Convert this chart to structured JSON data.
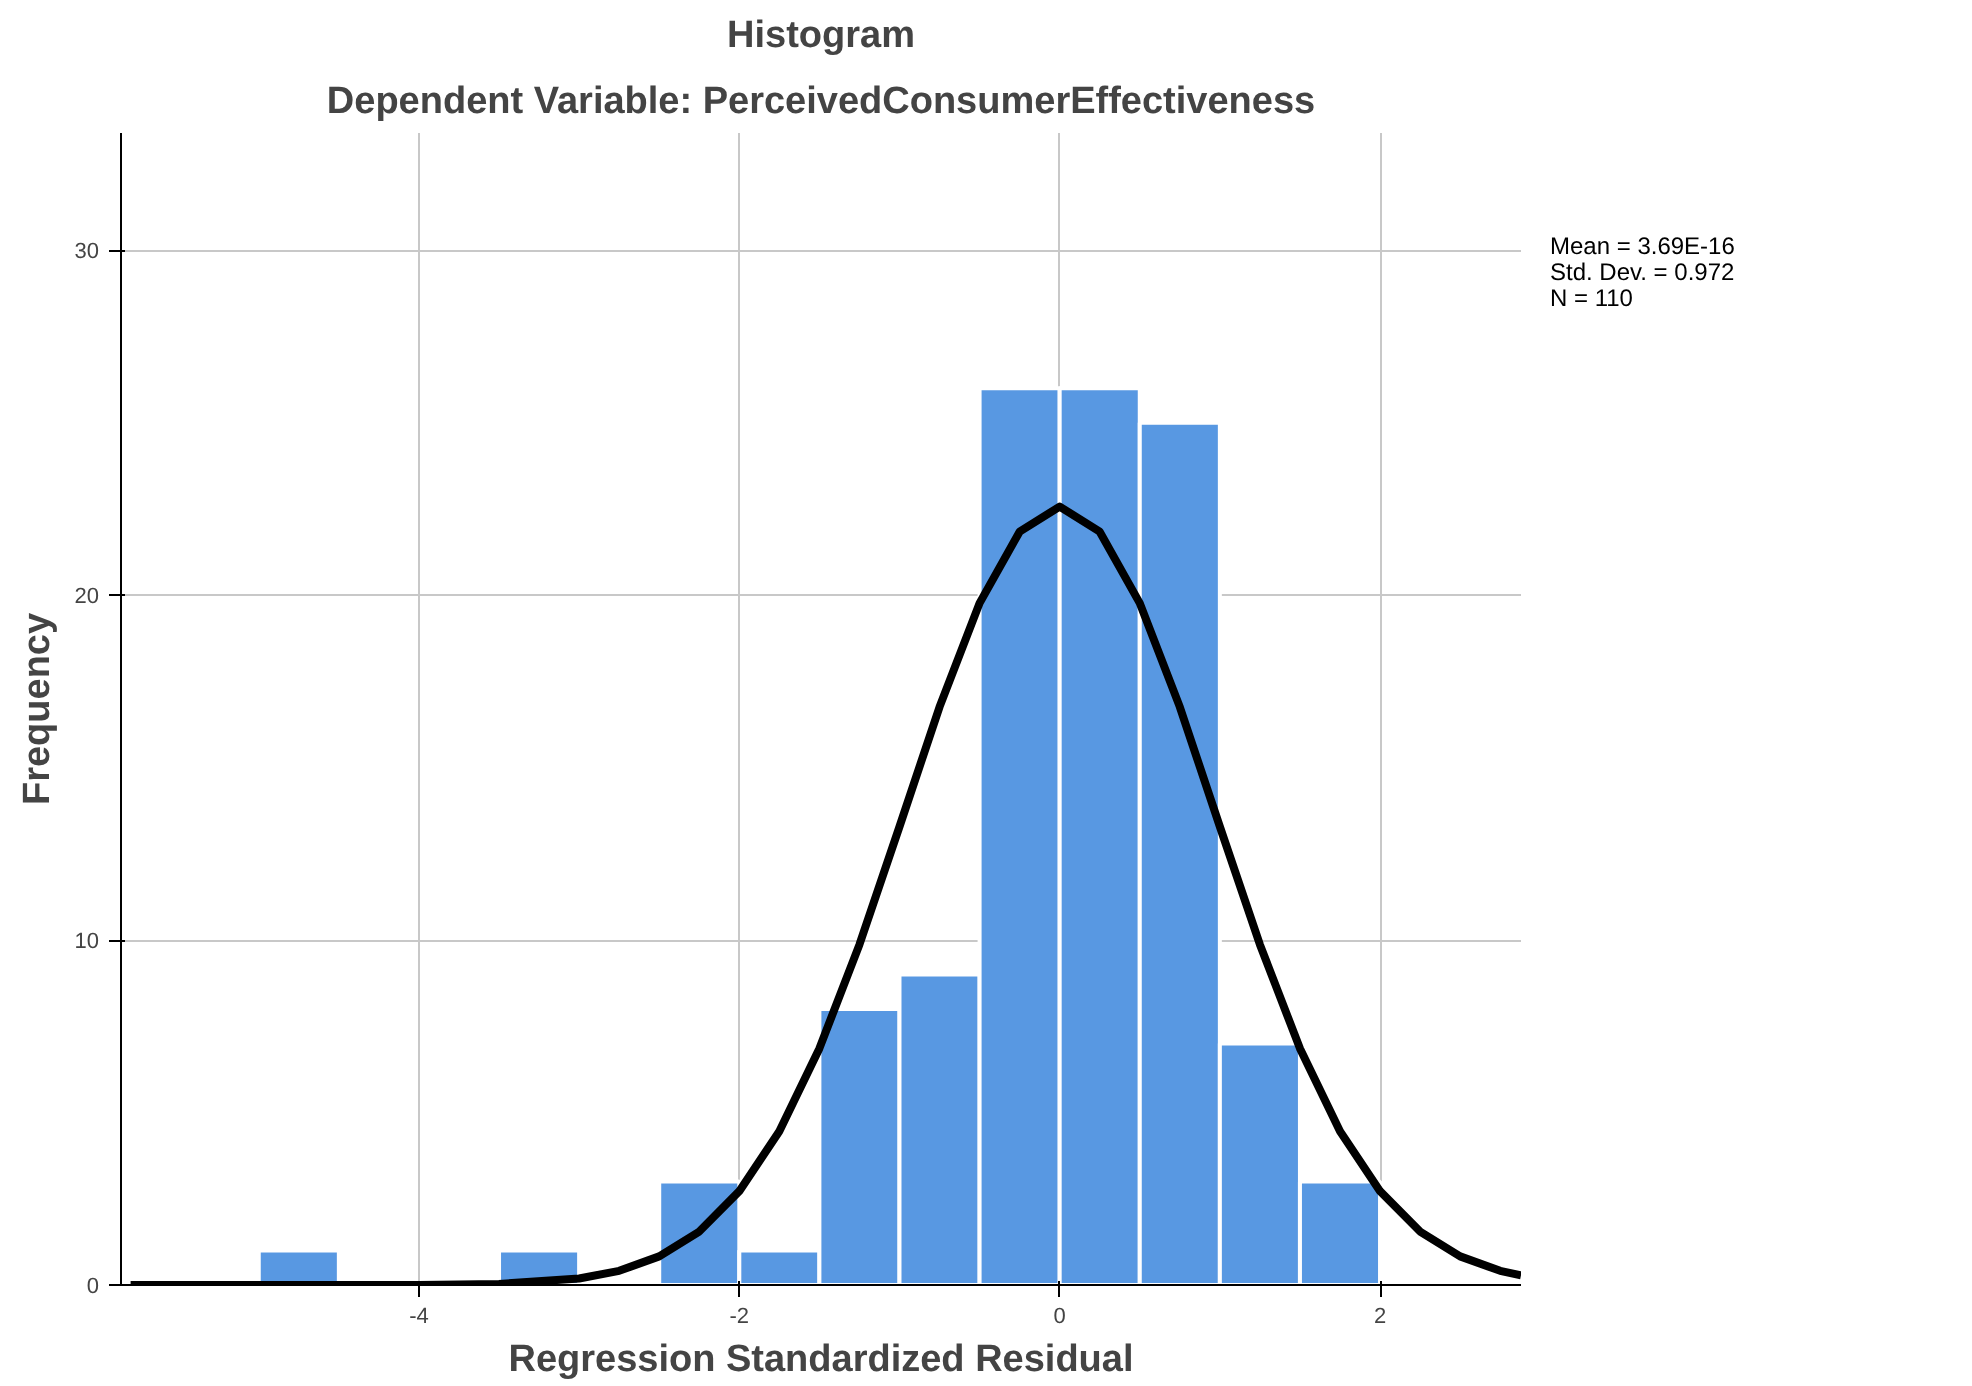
{
  "chart_data": {
    "type": "histogram",
    "title": "Histogram",
    "subtitle": "Dependent Variable: PerceivedConsumerEffectiveness",
    "xlabel": "Regression Standardized Residual",
    "ylabel": "Frequency",
    "bins": [
      -5,
      -4.5,
      -4,
      -3.5,
      -3,
      -2.5,
      -2,
      -1.5,
      -1,
      -0.5,
      0,
      0.5,
      1,
      1.5,
      2
    ],
    "values": [
      1,
      0,
      0,
      1,
      0,
      3,
      1,
      8,
      9,
      26,
      26,
      25,
      7,
      3
    ],
    "color": "#5898e2",
    "series": [
      {
        "type": "line",
        "color": "#000000",
        "x": [
          -5.8,
          -4,
          -3.5,
          -3,
          -2.75,
          -2.5,
          -2.25,
          -2,
          -1.75,
          -1.5,
          -1.25,
          -1,
          -0.75,
          -0.5,
          -0.25,
          0,
          0.25,
          0.5,
          0.75,
          1,
          1.25,
          1.5,
          1.75,
          2,
          2.25,
          2.5,
          2.75,
          2.88
        ],
        "values": [
          0,
          0,
          0.03,
          0.19,
          0.41,
          0.83,
          1.55,
          2.72,
          4.46,
          6.86,
          9.87,
          13.29,
          16.76,
          19.77,
          21.84,
          22.57,
          21.84,
          19.77,
          16.76,
          13.29,
          9.87,
          6.86,
          4.46,
          2.72,
          1.55,
          0.83,
          0.41,
          0.28
        ]
      }
    ],
    "xlim": [
      -5.86,
      2.88
    ],
    "ylim": [
      0,
      33.4
    ],
    "xticks": [
      -4,
      -2,
      0,
      2
    ],
    "yticks": [
      0,
      10,
      20,
      30
    ],
    "grid": true,
    "annotations": [
      "Mean = 3.69E-16",
      "Std. Dev. = 0.972",
      "N = 110"
    ]
  }
}
